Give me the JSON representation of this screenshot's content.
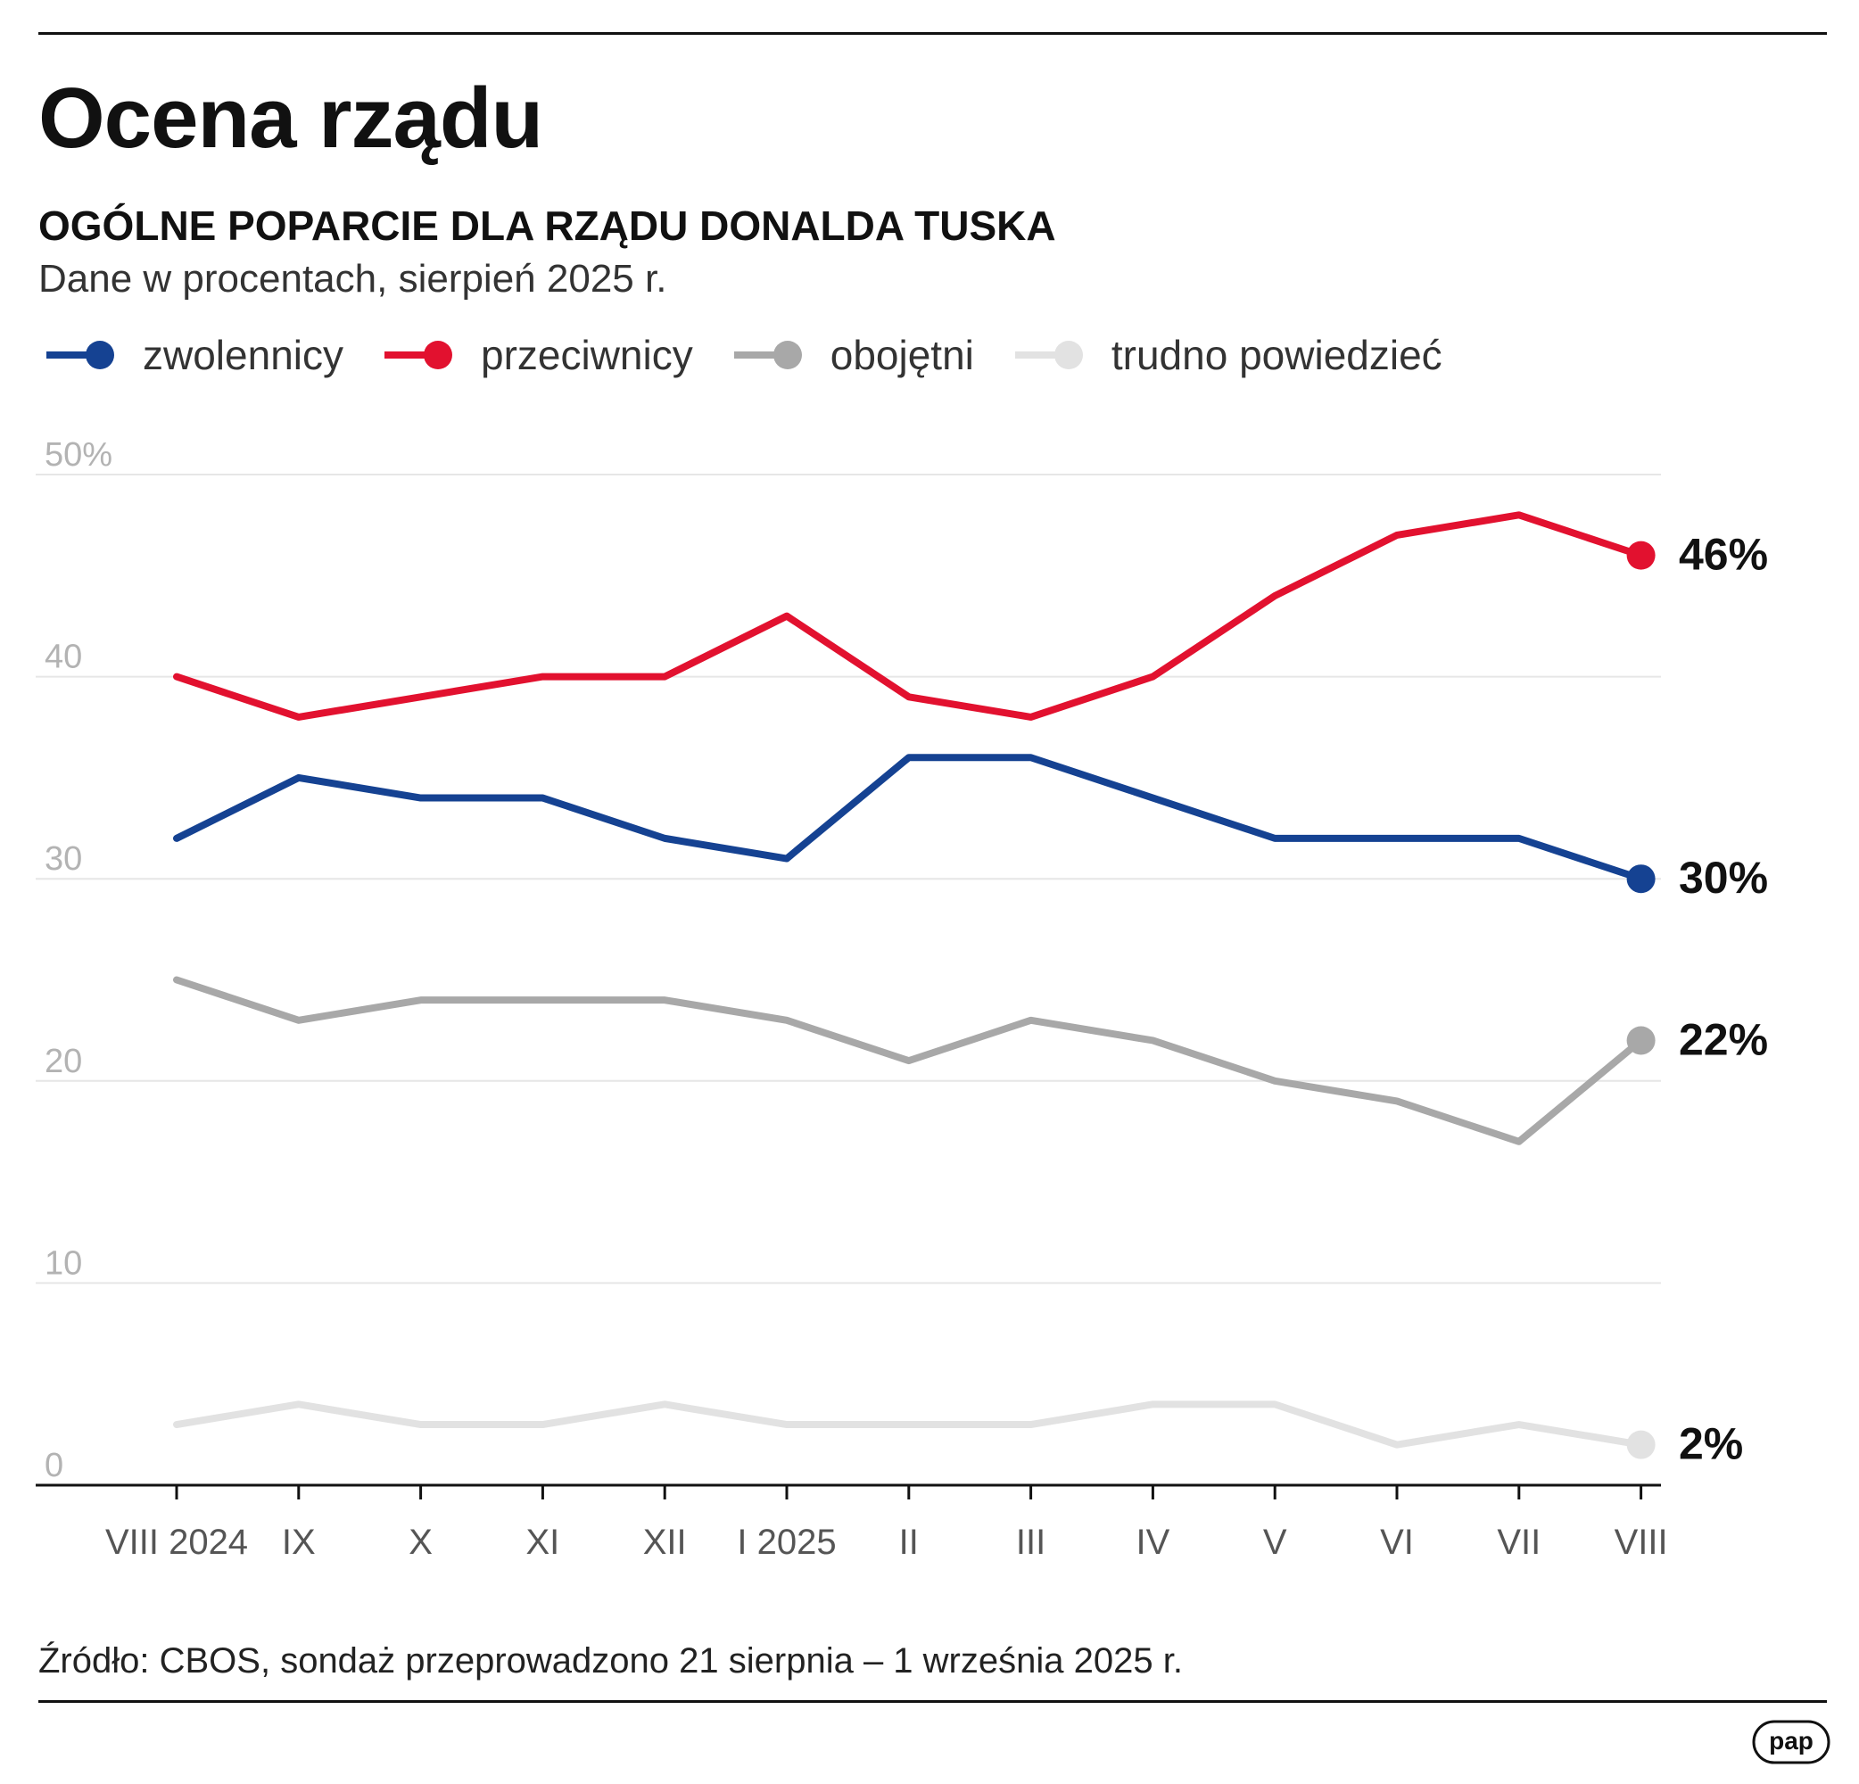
{
  "header": {
    "title": "Ocena rządu",
    "subtitle": "OGÓLNE POPARCIE DLA RZĄDU DONALDA TUSKA",
    "caption": "Dane w procentach, sierpień 2025 r."
  },
  "colors": {
    "zwolennicy": "#154292",
    "przeciwnicy": "#e2112f",
    "obojetni": "#a8a8a8",
    "trudno": "#e2e2e2",
    "grid": "#e6e6e6",
    "axis": "#111111",
    "tick_label": "#b3b3b3",
    "x_label": "#555555"
  },
  "legend": [
    {
      "label": "zwolennicy",
      "color": "#154292"
    },
    {
      "label": "przeciwnicy",
      "color": "#e2112f"
    },
    {
      "label": "obojętni",
      "color": "#a8a8a8"
    },
    {
      "label": "trudno powiedzieć",
      "color": "#e2e2e2"
    }
  ],
  "chart_data": {
    "type": "line",
    "title": "OGÓLNE POPARCIE DLA RZĄDU DONALDA TUSKA",
    "xlabel": "",
    "ylabel": "",
    "ylim": [
      0,
      50
    ],
    "yticks": [
      {
        "value": 50,
        "label": "50%"
      },
      {
        "value": 40,
        "label": "40"
      },
      {
        "value": 30,
        "label": "30"
      },
      {
        "value": 20,
        "label": "20"
      },
      {
        "value": 10,
        "label": "10"
      },
      {
        "value": 0,
        "label": "0"
      }
    ],
    "categories": [
      "VIII 2024",
      "IX",
      "X",
      "XI",
      "XII",
      "I 2025",
      "II",
      "III",
      "IV",
      "V",
      "VI",
      "VII",
      "VIII"
    ],
    "series": [
      {
        "name": "przeciwnicy",
        "color": "#e2112f",
        "values": [
          40,
          38,
          39,
          40,
          40,
          43,
          39,
          38,
          40,
          44,
          47,
          48,
          46
        ],
        "end_label": "46%"
      },
      {
        "name": "zwolennicy",
        "color": "#154292",
        "values": [
          32,
          35,
          34,
          34,
          32,
          31,
          36,
          36,
          34,
          32,
          32,
          32,
          30
        ],
        "end_label": "30%"
      },
      {
        "name": "obojętni",
        "color": "#a8a8a8",
        "values": [
          25,
          23,
          24,
          24,
          24,
          23,
          21,
          23,
          22,
          20,
          19,
          17,
          22
        ],
        "end_label": "22%"
      },
      {
        "name": "trudno powiedzieć",
        "color": "#e2e2e2",
        "values": [
          3,
          4,
          3,
          3,
          4,
          3,
          3,
          3,
          4,
          4,
          2,
          3,
          2
        ],
        "end_label": "2%"
      }
    ],
    "grid": true,
    "legend_position": "top-left"
  },
  "footer": {
    "source": "Źródło: CBOS, sondaż przeprowadzono 21 sierpnia – 1 września 2025 r.",
    "logo_text": "pap"
  }
}
